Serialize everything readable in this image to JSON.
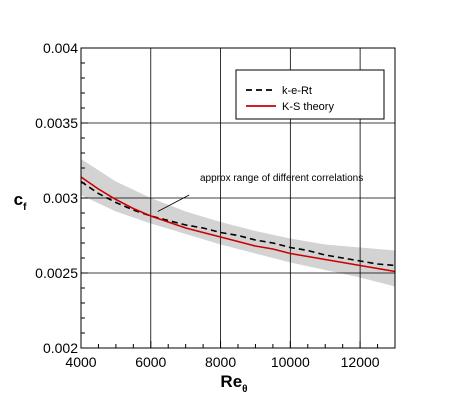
{
  "chart_data": {
    "type": "line",
    "xlabel": "Re",
    "xlabel_sub": "θ",
    "ylabel": "c",
    "ylabel_sub": "f",
    "xlim": [
      4000,
      13000
    ],
    "ylim": [
      0.002,
      0.004
    ],
    "x_ticks": [
      4000,
      6000,
      8000,
      10000,
      12000
    ],
    "x_tick_labels": [
      "4000",
      "6000",
      "8000",
      "10000",
      "12000"
    ],
    "y_ticks": [
      0.002,
      0.0025,
      0.003,
      0.0035,
      0.004
    ],
    "y_tick_labels": [
      "0.002",
      "0.0025",
      "0.003",
      "0.0035",
      "0.004"
    ],
    "grid": true,
    "legend_position": "top-right",
    "series": [
      {
        "name": "k-e-Rt",
        "style": "dashed",
        "color": "#000000",
        "x": [
          4000,
          4500,
          5000,
          5500,
          6000,
          6500,
          7000,
          7500,
          8000,
          8500,
          9000,
          9500,
          10000,
          10500,
          11000,
          11500,
          12000,
          12500,
          13000
        ],
        "y": [
          0.00311,
          0.00303,
          0.00297,
          0.00292,
          0.00288,
          0.00285,
          0.00282,
          0.0028,
          0.00277,
          0.00275,
          0.00272,
          0.0027,
          0.00267,
          0.00265,
          0.00262,
          0.0026,
          0.00258,
          0.00256,
          0.00255
        ]
      },
      {
        "name": "K-S theory",
        "style": "solid",
        "color": "#cc0000",
        "x": [
          4000,
          4500,
          5000,
          5500,
          6000,
          6500,
          7000,
          7500,
          8000,
          8500,
          9000,
          9500,
          10000,
          10500,
          11000,
          11500,
          12000,
          12500,
          13000
        ],
        "y": [
          0.00314,
          0.00306,
          0.00299,
          0.00293,
          0.00288,
          0.00284,
          0.0028,
          0.00277,
          0.00274,
          0.00271,
          0.00268,
          0.00266,
          0.00263,
          0.00261,
          0.00259,
          0.00257,
          0.00255,
          0.00253,
          0.00251
        ]
      }
    ],
    "band": {
      "color": "#d3d3d3",
      "x": [
        4000,
        5000,
        6000,
        7000,
        8000,
        9000,
        10000,
        11000,
        12000,
        13000
      ],
      "upper": [
        0.00326,
        0.00311,
        0.003,
        0.00291,
        0.00284,
        0.00278,
        0.00273,
        0.00269,
        0.00267,
        0.00265
      ],
      "lower": [
        0.00302,
        0.00291,
        0.00283,
        0.00276,
        0.00269,
        0.00263,
        0.00257,
        0.00252,
        0.00247,
        0.00241
      ]
    },
    "annotation": {
      "text": "approx range of different correlations",
      "arrow_from": [
        7100,
        0.00302
      ],
      "arrow_to": [
        6200,
        0.00291
      ]
    }
  }
}
